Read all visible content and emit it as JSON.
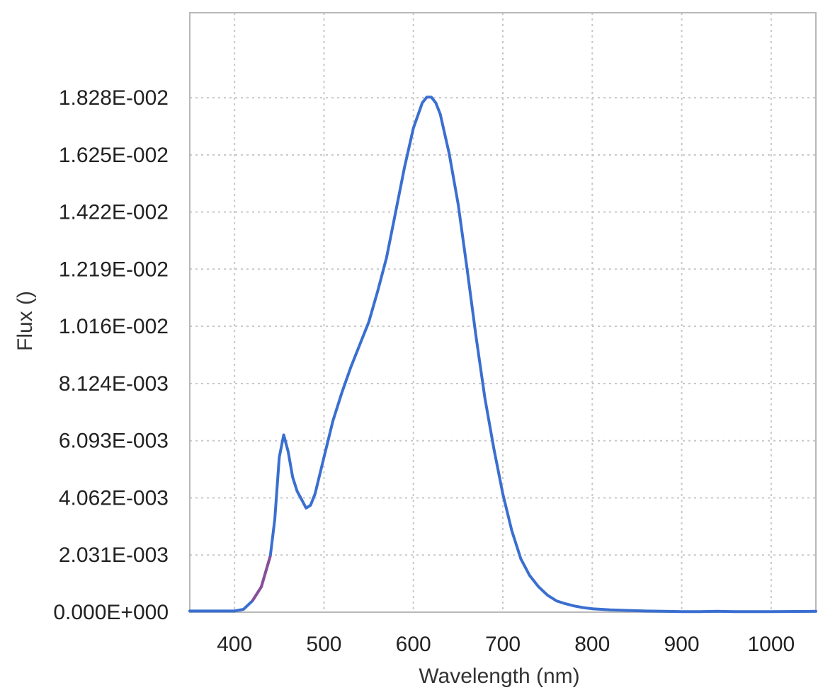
{
  "chart_data": {
    "type": "line",
    "xlabel": "Wavelength (nm)",
    "ylabel": "Flux ()",
    "xlim": [
      350,
      1050
    ],
    "ylim": [
      0,
      0.0213
    ],
    "x_ticks": [
      "400",
      "500",
      "600",
      "700",
      "800",
      "900",
      "1000"
    ],
    "x_tick_values": [
      400,
      500,
      600,
      700,
      800,
      900,
      1000
    ],
    "y_ticks": [
      "0.000E+000",
      "2.031E-003",
      "4.062E-003",
      "6.093E-003",
      "8.124E-003",
      "1.016E-002",
      "1.219E-002",
      "1.422E-002",
      "1.625E-002",
      "1.828E-002"
    ],
    "y_tick_values": [
      0,
      0.002031,
      0.004062,
      0.006093,
      0.008124,
      0.01016,
      0.01219,
      0.01422,
      0.01625,
      0.01828
    ],
    "grid": true,
    "colors": {
      "line": "#3a6fd0",
      "highlight": "#8a4f9a",
      "grid": "#c8c8c8",
      "border": "#b9b9b9"
    },
    "series": [
      {
        "x": [
          350,
          400,
          410,
          420,
          430,
          440,
          445,
          450,
          455,
          460,
          465,
          470,
          475,
          480,
          485,
          490,
          500,
          510,
          520,
          530,
          540,
          550,
          560,
          570,
          580,
          590,
          600,
          610,
          615,
          620,
          625,
          630,
          640,
          650,
          660,
          670,
          680,
          690,
          700,
          710,
          720,
          730,
          740,
          750,
          760,
          770,
          780,
          790,
          800,
          820,
          840,
          860,
          880,
          900,
          920,
          940,
          960,
          980,
          1000,
          1050
        ],
        "y": [
          4e-05,
          4e-05,
          0.0001,
          0.0004,
          0.0009,
          0.002,
          0.0033,
          0.0055,
          0.0063,
          0.0057,
          0.0048,
          0.0043,
          0.004,
          0.0037,
          0.0038,
          0.0042,
          0.0055,
          0.0068,
          0.0078,
          0.0087,
          0.0095,
          0.0103,
          0.0114,
          0.0126,
          0.0142,
          0.0158,
          0.0172,
          0.0181,
          0.0183,
          0.0183,
          0.0181,
          0.0177,
          0.0163,
          0.0145,
          0.0122,
          0.0098,
          0.0076,
          0.0058,
          0.0042,
          0.0029,
          0.0019,
          0.0013,
          0.0009,
          0.0006,
          0.0004,
          0.0003,
          0.00022,
          0.00016,
          0.00012,
          8e-05,
          6e-05,
          4e-05,
          3e-05,
          2e-05,
          2e-05,
          3e-05,
          2e-05,
          2e-05,
          2e-05,
          3e-05
        ]
      }
    ]
  }
}
